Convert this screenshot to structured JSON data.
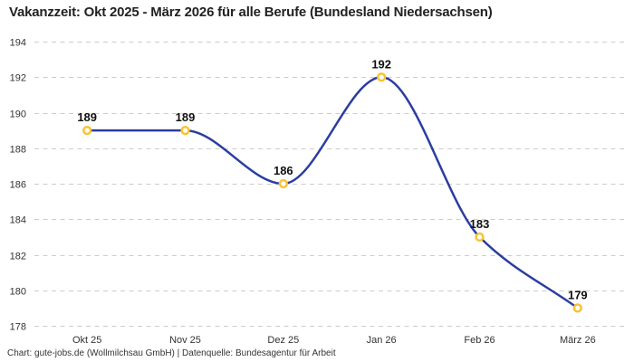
{
  "chart_data": {
    "type": "line",
    "title": "Vakanzzeit: Okt 2025 - März 2026 für alle Berufe (Bundesland Niedersachsen)",
    "source": "Chart: gute-jobs.de (Wollmilchsau GmbH) | Datenquelle: Bundesagentur für Arbeit",
    "categories": [
      "Okt 25",
      "Nov 25",
      "Dez 25",
      "Jan 26",
      "Feb 26",
      "März 26"
    ],
    "values": [
      189,
      189,
      186,
      192,
      183,
      179
    ],
    "data_labels": [
      "189",
      "189",
      "186",
      "192",
      "183",
      "179"
    ],
    "xlabel": "",
    "ylabel": "",
    "ylim": [
      178,
      194
    ],
    "yticks": [
      194,
      192,
      190,
      188,
      186,
      184,
      182,
      180,
      178
    ],
    "grid": "horizontal-dashed",
    "legend": "none",
    "curve": "monotone",
    "colors": {
      "line": "#2b3da0",
      "marker_stroke": "#fbc232",
      "marker_fill": "#ffffff",
      "gridline": "#cccccc",
      "tick_text": "#333333",
      "title_text": "#222222",
      "background": "#ffffff"
    }
  }
}
